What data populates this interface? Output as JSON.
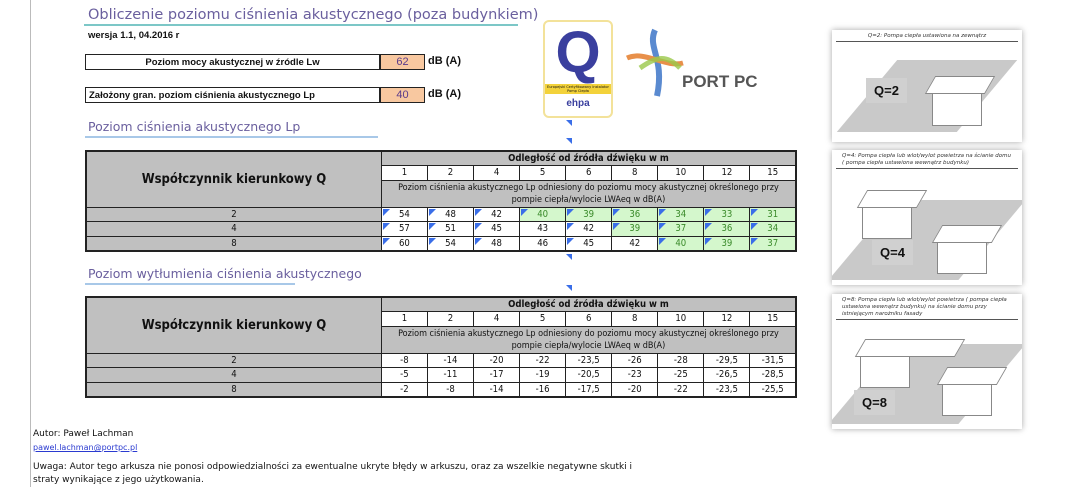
{
  "title": "Obliczenie poziomu ciśnienia akustycznego (poza budynkiem)",
  "version": "wersja 1.1, 04.2016 r",
  "inputs": [
    {
      "label": "Poziom mocy akustycznej w źródle Lw",
      "value": "62",
      "unit": "dB (A)"
    },
    {
      "label": "Założony gran. poziom ciśnienia akustycznego Lp",
      "value": "40",
      "unit": "dB (A)"
    }
  ],
  "logos": {
    "q_letter": "Q",
    "q_band": "Europejski Certyfikowany Instalator Pomp Ciepła",
    "ehpa": "ehpa",
    "portpc": "PORT PC"
  },
  "accent": {
    "title": "#6a5f9e",
    "input_bg": "#f8c8a0",
    "green_bg": "#d4f7cc",
    "green_text": "#3a8a2a",
    "marker": "#3a6ee8"
  },
  "section1": "Poziom ciśnienia akustycznego Lp",
  "section2": "Poziom wytłumienia ciśnienia akustycznego",
  "table_common": {
    "q_header": "Współczynnik kierunkowy Q",
    "dist_header": "Odległość od źródła dźwięku w m",
    "distances": [
      "1",
      "2",
      "4",
      "5",
      "6",
      "8",
      "10",
      "12",
      "15"
    ],
    "desc": "Poziom ciśnienia akustycznego Lp odniesiony do poziomu mocy akustycznej określonego przy pompie ciepła/wylocie LWAeq w dB(A)"
  },
  "table1": {
    "rows": [
      {
        "q": "2",
        "values": [
          "54",
          "48",
          "42",
          "40",
          "39",
          "36",
          "34",
          "33",
          "31"
        ],
        "green": [
          false,
          false,
          false,
          true,
          true,
          true,
          true,
          true,
          true
        ]
      },
      {
        "q": "4",
        "values": [
          "57",
          "51",
          "45",
          "43",
          "42",
          "39",
          "37",
          "36",
          "34"
        ],
        "green": [
          false,
          false,
          false,
          false,
          false,
          true,
          true,
          true,
          true
        ]
      },
      {
        "q": "8",
        "values": [
          "60",
          "54",
          "48",
          "46",
          "45",
          "42",
          "40",
          "39",
          "37"
        ],
        "green": [
          false,
          false,
          false,
          false,
          false,
          false,
          true,
          true,
          true
        ]
      }
    ]
  },
  "table2": {
    "rows": [
      {
        "q": "2",
        "values": [
          "-8",
          "-14",
          "-20",
          "-22",
          "-23,5",
          "-26",
          "-28",
          "-29,5",
          "-31,5"
        ]
      },
      {
        "q": "4",
        "values": [
          "-5",
          "-11",
          "-17",
          "-19",
          "-20,5",
          "-23",
          "-25",
          "-26,5",
          "-28,5"
        ]
      },
      {
        "q": "8",
        "values": [
          "-2",
          "-8",
          "-14",
          "-16",
          "-17,5",
          "-20",
          "-22",
          "-23,5",
          "-25,5"
        ]
      }
    ]
  },
  "footer": {
    "author": "Autor: Paweł Lachman",
    "email": "pawel.lachman@portpc.pl",
    "note1": "Uwaga: Autor tego arkusza nie ponosi odpowiedzialności za ewentualne ukryte błędy w arkuszu,  oraz za wszelkie negatywne skutki i",
    "note2": "straty wynikające z jego użytkowania."
  },
  "panels": [
    {
      "caption": "Q=2: Pompa ciepła ustawiona na zewnątrz",
      "label": "Q=2"
    },
    {
      "caption": "Q=4: Pompa ciepła lub wlot/wylot powietrza na ścianie domu ( pompa ciepła ustawiona wewnątrz budynku)",
      "label": "Q=4"
    },
    {
      "caption": "Q=8: Pompa ciepła lub wlot/wylot powietrza ( pompa ciepła ustawiona wewnątrz budynku) na ścianie domu przy istniejącym narożniku fasady",
      "label": "Q=8"
    }
  ]
}
